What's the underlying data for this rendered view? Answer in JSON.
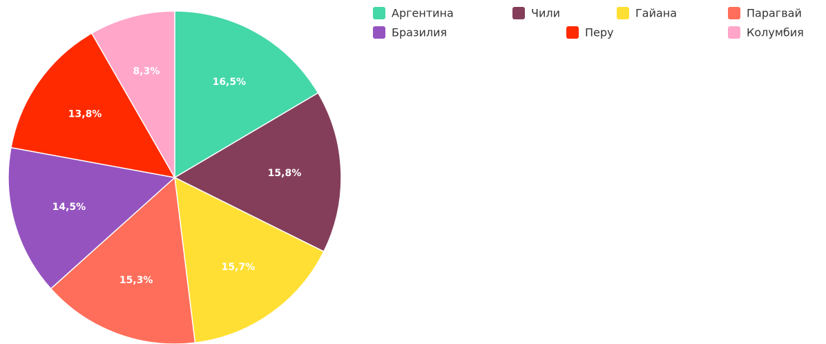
{
  "chart_data": {
    "type": "pie",
    "categories": [
      "Аргентина",
      "Чили",
      "Гайана",
      "Парагвай",
      "Бразилия",
      "Перу",
      "Колумбия"
    ],
    "values": [
      16.5,
      15.8,
      15.7,
      15.3,
      14.5,
      13.8,
      8.3
    ],
    "value_labels": [
      "16,5%",
      "15,8%",
      "15,7%",
      "15,3%",
      "14,5%",
      "13,8%",
      "8,3%"
    ],
    "colors": [
      "#44d7a8",
      "#843e5a",
      "#ffdf33",
      "#ff6e5a",
      "#9553c0",
      "#ff2a00",
      "#ffa6c9"
    ],
    "legend": "top-right"
  }
}
